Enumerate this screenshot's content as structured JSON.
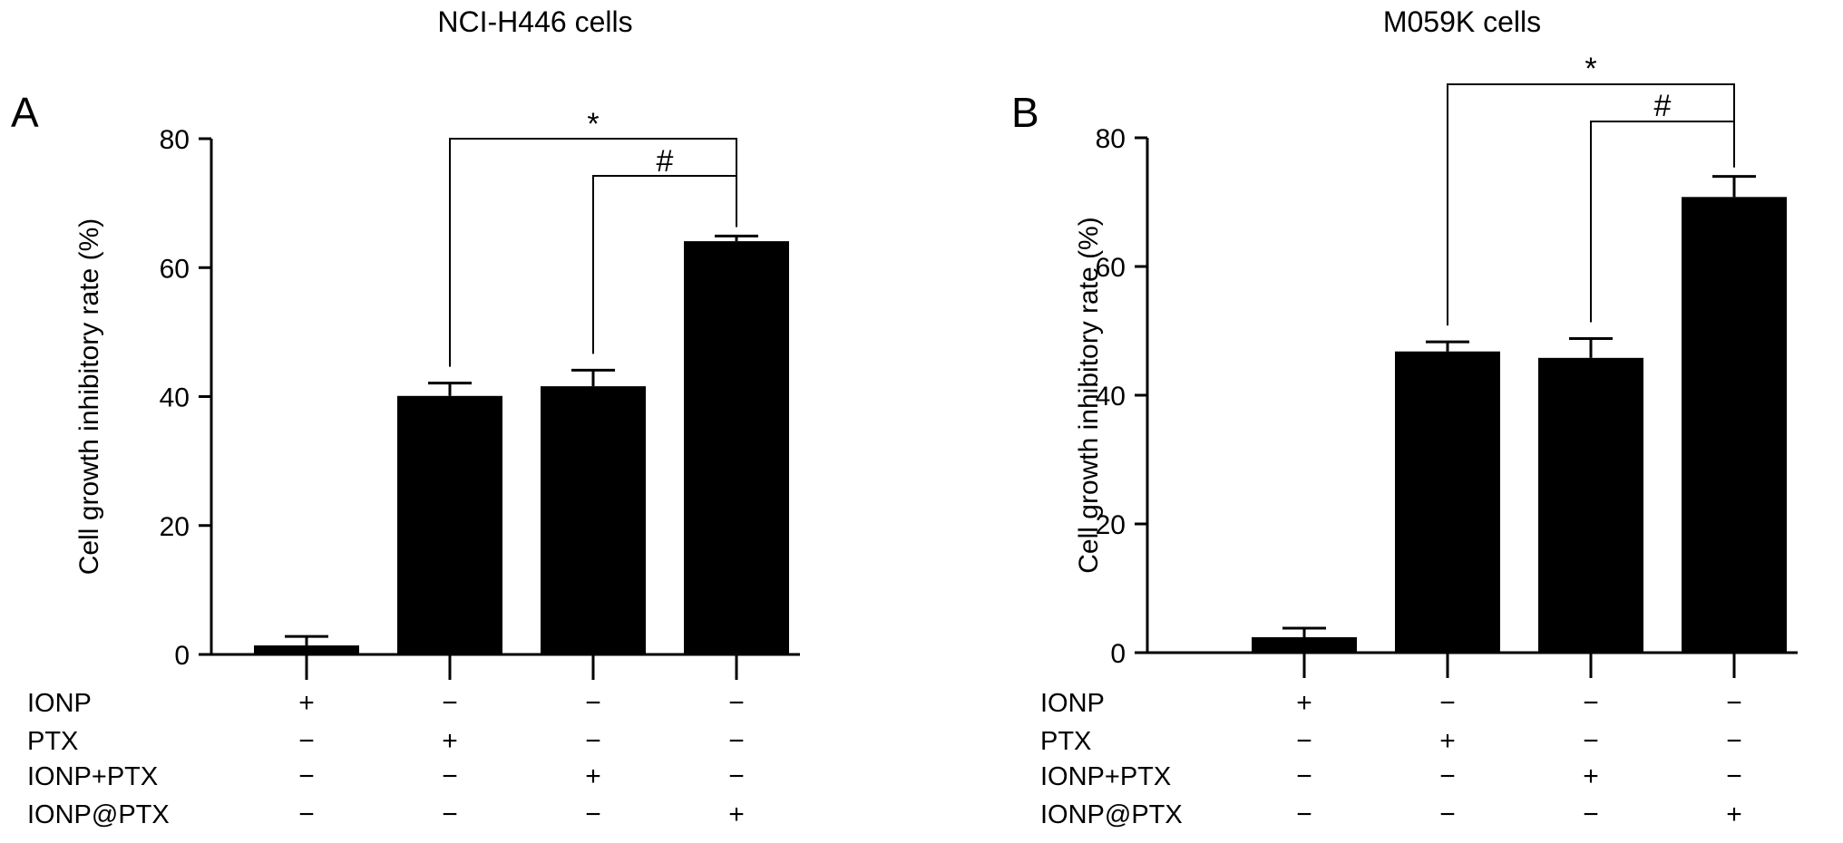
{
  "chart_data": [
    {
      "type": "bar",
      "panel": "A",
      "title": "NCI-H446 cells",
      "ylabel": "Cell growth inhibitory rate (%)",
      "ylim": [
        0,
        80
      ],
      "yticks": [
        0,
        20,
        40,
        60,
        80
      ],
      "categories": [
        "IONP",
        "PTX",
        "IONP+PTX",
        "IONP@PTX"
      ],
      "values": [
        1.4,
        40.1,
        41.6,
        64.1
      ],
      "errors": [
        1.4,
        2.0,
        2.5,
        0.8
      ],
      "bar_color": "#000000",
      "treatment_rows": [
        {
          "label": "IONP",
          "marks": [
            "+",
            "−",
            "−",
            "−"
          ]
        },
        {
          "label": "PTX",
          "marks": [
            "−",
            "+",
            "−",
            "−"
          ]
        },
        {
          "label": "IONP+PTX",
          "marks": [
            "−",
            "−",
            "+",
            "−"
          ]
        },
        {
          "label": "IONP@PTX",
          "marks": [
            "−",
            "−",
            "−",
            "+"
          ]
        }
      ],
      "significance": [
        {
          "from": 1,
          "to": 3,
          "symbol": "*"
        },
        {
          "from": 2,
          "to": 3,
          "symbol": "#"
        }
      ]
    },
    {
      "type": "bar",
      "panel": "B",
      "title": "M059K cells",
      "ylabel": "Cell growth inhibitory rate (%)",
      "ylim": [
        0,
        80
      ],
      "yticks": [
        0,
        20,
        40,
        60,
        80
      ],
      "categories": [
        "IONP",
        "PTX",
        "IONP+PTX",
        "IONP@PTX"
      ],
      "values": [
        2.4,
        46.8,
        45.8,
        70.8
      ],
      "errors": [
        1.4,
        1.5,
        3.0,
        3.2
      ],
      "bar_color": "#000000",
      "treatment_rows": [
        {
          "label": "IONP",
          "marks": [
            "+",
            "−",
            "−",
            "−"
          ]
        },
        {
          "label": "PTX",
          "marks": [
            "−",
            "+",
            "−",
            "−"
          ]
        },
        {
          "label": "IONP+PTX",
          "marks": [
            "−",
            "−",
            "+",
            "−"
          ]
        },
        {
          "label": "IONP@PTX",
          "marks": [
            "−",
            "−",
            "−",
            "+"
          ]
        }
      ],
      "significance": [
        {
          "from": 1,
          "to": 3,
          "symbol": "*"
        },
        {
          "from": 2,
          "to": 3,
          "symbol": "#"
        }
      ]
    }
  ]
}
